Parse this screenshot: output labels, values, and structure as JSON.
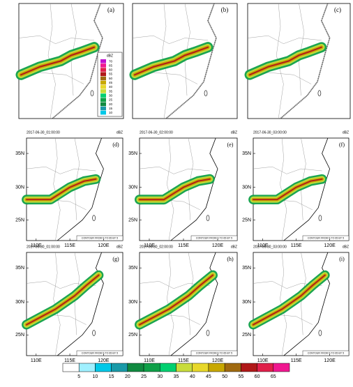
{
  "top_panels": [
    {
      "label": "(a)"
    },
    {
      "label": "(b)"
    },
    {
      "label": "(c)"
    }
  ],
  "legend": {
    "title": "dBZ",
    "levels": [
      70,
      65,
      60,
      55,
      50,
      45,
      40,
      35,
      30,
      25,
      20,
      15,
      10
    ]
  },
  "rows": [
    {
      "panels": [
        {
          "label": "(d)",
          "time": "2017-06-30_01:00:00",
          "unit": "dBZ",
          "note": "CONTOUR FROM 5 TO 65 BY 5"
        },
        {
          "label": "(e)",
          "time": "2017-06-30_02:00:00",
          "unit": "dBZ",
          "note": "CONTOUR FROM 5 TO 65 BY 5"
        },
        {
          "label": "(f)",
          "time": "2017-06-30_03:00:00",
          "unit": "dBZ",
          "note": "CONTOUR FROM 5 TO 65 BY 5"
        }
      ]
    },
    {
      "panels": [
        {
          "label": "(g)",
          "time": "2017-06-30_01:00:00",
          "unit": "dBZ",
          "note": "CONTOUR FROM 5 TO 65 BY 5"
        },
        {
          "label": "(h)",
          "time": "2017-06-30_02:00:00",
          "unit": "dBZ",
          "note": "CONTOUR FROM 5 TO 65 BY 5"
        },
        {
          "label": "(i)",
          "time": "2017-06-30_03:00:00",
          "unit": "dBZ",
          "note": "CONTOUR FROM 5 TO 65 BY 5"
        }
      ]
    }
  ],
  "lat_labels": [
    "35N",
    "30N",
    "25N"
  ],
  "lon_labels": [
    "110E",
    "115E",
    "120E"
  ],
  "colorbar": {
    "levels": [
      5,
      10,
      15,
      20,
      25,
      30,
      35,
      40,
      45,
      50,
      55,
      60,
      65
    ]
  }
}
